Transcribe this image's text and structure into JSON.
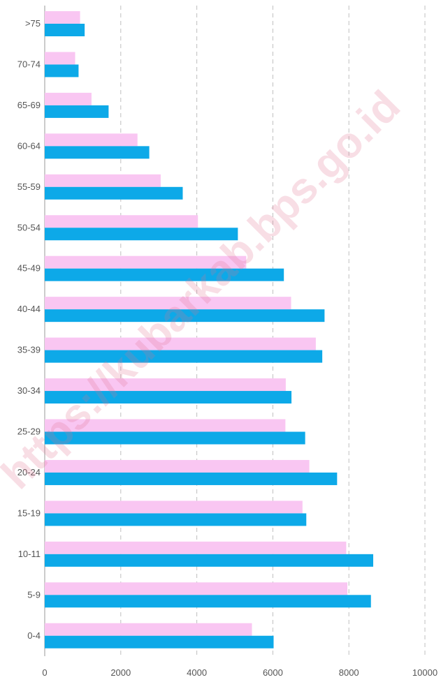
{
  "watermark": "https://kubarkab.bps.go.id",
  "chart_data": {
    "type": "bar",
    "orientation": "horizontal",
    "title": "",
    "xlabel": "",
    "ylabel": "",
    "xlim": [
      0,
      10000
    ],
    "x_ticks": [
      0,
      2000,
      4000,
      6000,
      8000,
      10000
    ],
    "x_tick_labels": [
      "0",
      "2000",
      "4000",
      "6000",
      "8000",
      "10000"
    ],
    "grid": true,
    "legend": "none",
    "categories": [
      ">75",
      "70-74",
      "65-69",
      "60-64",
      "55-59",
      "50-54",
      "45-49",
      "40-44",
      "35-39",
      "30-34",
      "25-29",
      "20-24",
      "15-19",
      "10-11",
      "5-9",
      "0-4"
    ],
    "series": [
      {
        "color": "#f9c6f2",
        "values": [
          930,
          800,
          1230,
          2440,
          3050,
          4030,
          5300,
          6480,
          7130,
          6340,
          6330,
          6960,
          6780,
          7930,
          7960,
          5450
        ]
      },
      {
        "color": "#0da9e8",
        "values": [
          1050,
          890,
          1680,
          2750,
          3630,
          5080,
          6290,
          7360,
          7300,
          6490,
          6850,
          7690,
          6880,
          8640,
          8580,
          6020
        ]
      }
    ]
  }
}
